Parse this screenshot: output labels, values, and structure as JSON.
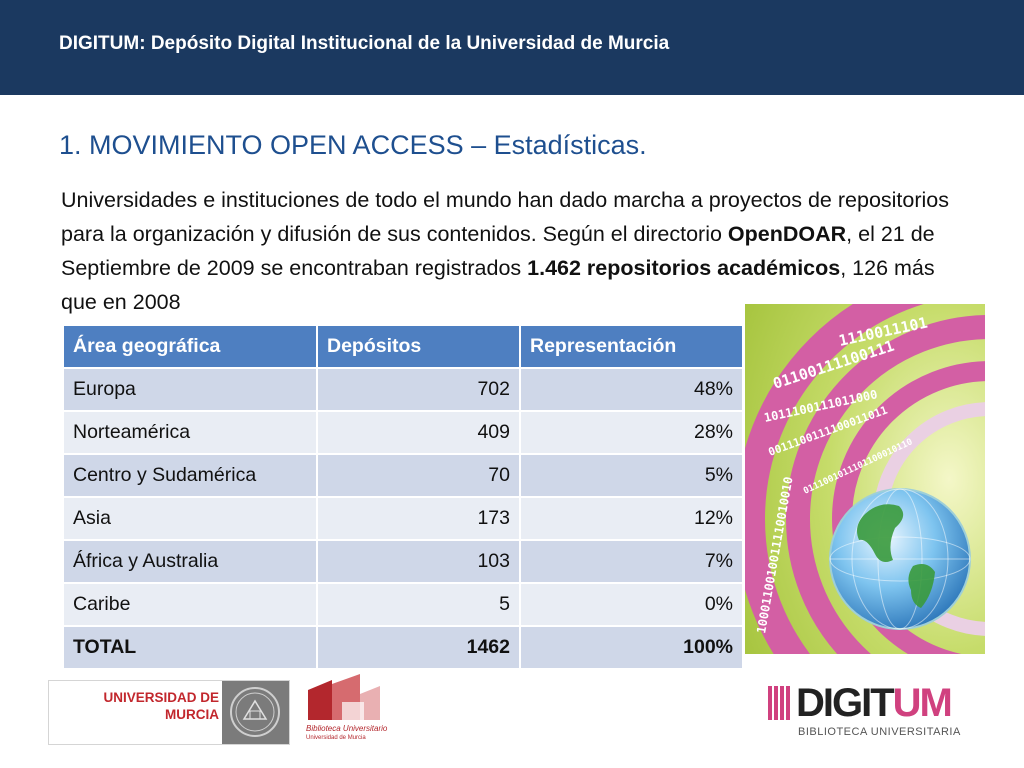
{
  "header": {
    "title": "DIGITUM: Depósito Digital Institucional de la Universidad de Murcia"
  },
  "slide": {
    "heading": "1. MOVIMIENTO OPEN ACCESS – Estadísticas.",
    "intro": {
      "p1": "Universidades e instituciones de todo el mundo han dado marcha a proyectos de repositorios para la organización y difusión de sus contenidos. Según  el directorio ",
      "b1": "OpenDOAR",
      "p2": ", el 21 de Septiembre de 2009 se encontraban registrados ",
      "b2": "1.462 repositorios académicos",
      "p3": ", 126 más que en 2008"
    }
  },
  "table": {
    "headers": [
      "Área geográfica",
      "Depósitos",
      "Representación"
    ],
    "rows": [
      [
        "Europa",
        "702",
        "48%"
      ],
      [
        "Norteamérica",
        "409",
        "28%"
      ],
      [
        "Centro y Sudamérica",
        "70",
        "5%"
      ],
      [
        "Asia",
        "173",
        "12%"
      ],
      [
        "África y Australia",
        "103",
        "7%"
      ],
      [
        "Caribe",
        "5",
        "0%"
      ],
      [
        "TOTAL",
        "1462",
        "100%"
      ]
    ]
  },
  "decor": {
    "binary_lines": [
      "1110011101",
      "01100111100111",
      "1011100111011000",
      "0011100111100011011",
      "0111001011101100010110",
      "1000110010011110010010"
    ]
  },
  "footer": {
    "um_logo": {
      "line1": "UNIVERSIDAD DE",
      "line2": "MURCIA"
    },
    "biblioteca": {
      "line1": "Biblioteca Universitario",
      "line2": "Universidad de Murcia"
    },
    "digitum": {
      "word_dark": "DIGIT",
      "word_accent": "UM",
      "sub": "BIBLIOTECA UNIVERSITARIA"
    }
  },
  "colors": {
    "header_bg": "#1b3960",
    "heading": "#1e4f8f",
    "table_header": "#4e7fc1",
    "accent": "#d0417f",
    "um_red": "#c2272d"
  }
}
